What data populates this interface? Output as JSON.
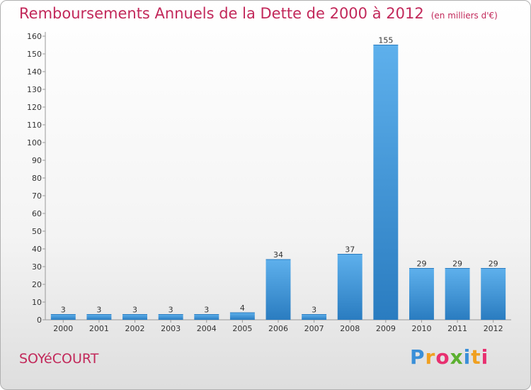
{
  "chart_data": {
    "type": "bar",
    "title": "Remboursements Annuels de la Dette de 2000 à 2012",
    "unit_label": "(en milliers d'€)",
    "categories": [
      "2000",
      "2001",
      "2002",
      "2003",
      "2004",
      "2005",
      "2006",
      "2007",
      "2008",
      "2009",
      "2010",
      "2011",
      "2012"
    ],
    "values": [
      3,
      3,
      3,
      3,
      3,
      4,
      34,
      3,
      37,
      155,
      29,
      29,
      29
    ],
    "ylim": [
      0,
      160
    ],
    "yticks": [
      0,
      10,
      20,
      30,
      40,
      50,
      60,
      70,
      80,
      90,
      100,
      110,
      120,
      130,
      140,
      150,
      160
    ],
    "grid": false,
    "bar_color": "#4a9ee0"
  },
  "footer": {
    "town": "SOYéCOURT",
    "logo_letters": [
      "P",
      "r",
      "o",
      "x",
      "i",
      "t",
      "i"
    ]
  }
}
